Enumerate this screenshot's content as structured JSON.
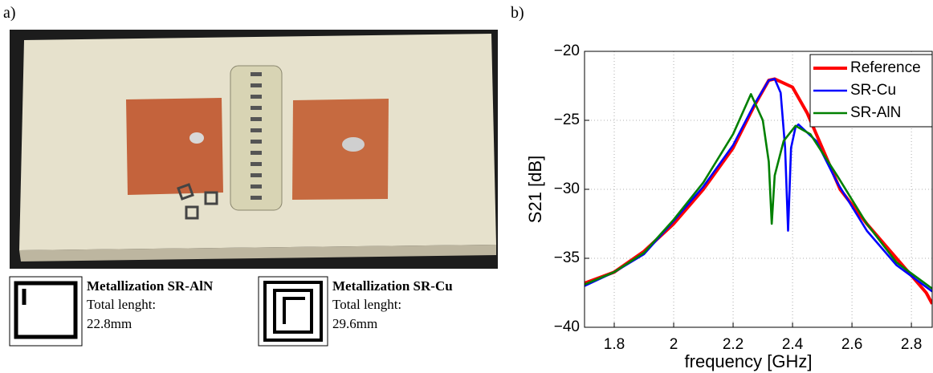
{
  "panel_labels": [
    "a)",
    "b)"
  ],
  "captions": [
    {
      "title": "Metallization SR-AlN",
      "lines": [
        "Total lenght:",
        "22.8mm"
      ]
    },
    {
      "title": "Metallization SR-Cu",
      "lines": [
        "Total lenght:",
        "29.6mm"
      ]
    }
  ],
  "chart_data": {
    "type": "line",
    "xlabel": "frequency [GHz]",
    "ylabel": "S21 [dB]",
    "xlim": [
      1.7,
      2.87
    ],
    "ylim": [
      -40,
      -20
    ],
    "xticks": [
      1.8,
      2,
      2.2,
      2.4,
      2.6,
      2.8
    ],
    "yticks": [
      {
        "value": -20,
        "label": "−20"
      },
      {
        "value": -25,
        "label": "−25"
      },
      {
        "value": -30,
        "label": "−30"
      },
      {
        "value": -35,
        "label": "−35"
      },
      {
        "value": -40,
        "label": "−40"
      }
    ],
    "grid": true,
    "legend": "upper right",
    "series": [
      {
        "name": "Reference",
        "color": "#ff0000",
        "x": [
          1.7,
          1.8,
          1.9,
          2.0,
          2.1,
          2.2,
          2.27,
          2.32,
          2.34,
          2.4,
          2.45,
          2.5,
          2.56,
          2.65,
          2.75,
          2.85,
          2.87
        ],
        "values": [
          -36.8,
          -36.0,
          -34.5,
          -32.5,
          -30.0,
          -27.0,
          -24.0,
          -22.1,
          -22.0,
          -22.6,
          -24.5,
          -27.0,
          -30.0,
          -32.5,
          -35.0,
          -37.5,
          -38.3
        ]
      },
      {
        "name": "SR-Cu",
        "color": "#0000ff",
        "x": [
          1.7,
          1.8,
          1.9,
          2.0,
          2.1,
          2.2,
          2.27,
          2.32,
          2.34,
          2.36,
          2.375,
          2.385,
          2.395,
          2.41,
          2.42,
          2.48,
          2.55,
          2.65,
          2.75,
          2.87
        ],
        "values": [
          -37.0,
          -36.0,
          -34.7,
          -32.3,
          -29.8,
          -26.8,
          -23.9,
          -22.1,
          -22.0,
          -23.0,
          -27.0,
          -33.0,
          -27.0,
          -25.5,
          -25.3,
          -26.5,
          -29.5,
          -33.0,
          -35.5,
          -37.4
        ]
      },
      {
        "name": "SR-AlN",
        "color": "#008000",
        "x": [
          1.7,
          1.8,
          1.9,
          2.0,
          2.1,
          2.2,
          2.26,
          2.3,
          2.32,
          2.33,
          2.34,
          2.37,
          2.41,
          2.46,
          2.55,
          2.65,
          2.75,
          2.87
        ],
        "values": [
          -36.9,
          -36.0,
          -34.6,
          -32.2,
          -29.5,
          -26.0,
          -23.1,
          -25.0,
          -28.0,
          -32.5,
          -29.0,
          -26.5,
          -25.4,
          -26.0,
          -29.0,
          -32.5,
          -35.3,
          -37.2
        ]
      }
    ]
  }
}
